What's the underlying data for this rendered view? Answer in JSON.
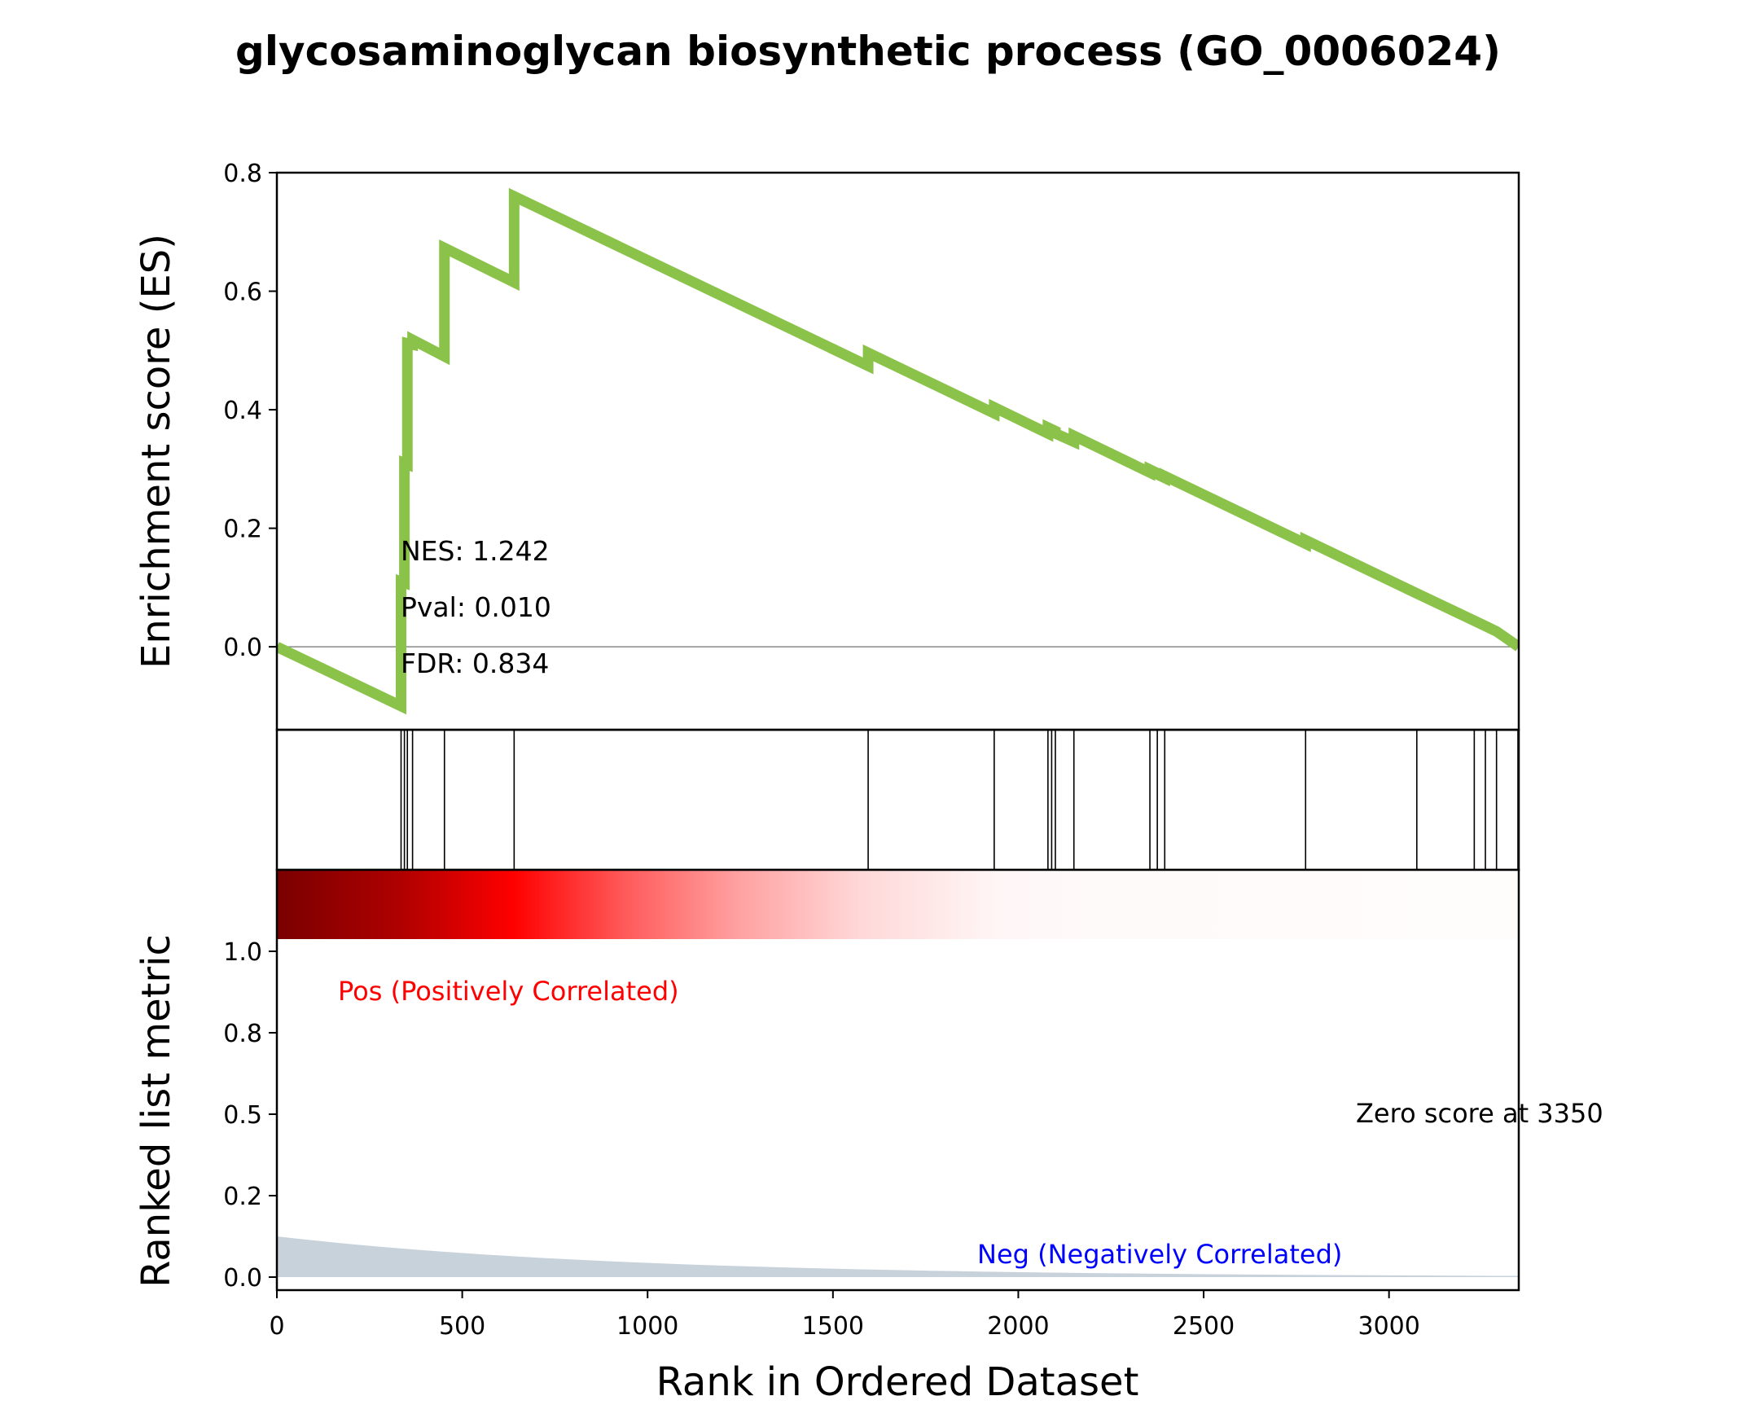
{
  "chart_data": {
    "type": "line",
    "title": "glycosaminoglycan biosynthetic process (GO_0006024)",
    "xlabel": "Rank in Ordered Dataset",
    "xlim": [
      0,
      3350
    ],
    "x_ticks": [
      "0",
      "500",
      "1000",
      "1500",
      "2000",
      "2500",
      "3000"
    ],
    "x_tick_values": [
      0,
      500,
      1000,
      1500,
      2000,
      2500,
      3000
    ],
    "es_panel": {
      "ylabel": "Enrichment score (ES)",
      "ylim": [
        -0.14,
        0.8
      ],
      "y_ticks": [
        "0.0",
        "0.2",
        "0.4",
        "0.6",
        "0.8"
      ],
      "y_tick_values": [
        0,
        0.2,
        0.4,
        0.6,
        0.8
      ],
      "line_color": "#8bc34a",
      "series": [
        {
          "x": [
            0,
            335,
            335,
            344,
            344,
            352,
            352,
            366,
            366,
            452,
            452,
            640,
            640,
            1595,
            1595,
            1935,
            1935,
            2080,
            2080,
            2100,
            2100,
            2150,
            2150,
            2355,
            2355,
            2375,
            2375,
            2395,
            2395,
            2775,
            2775,
            3075,
            3075,
            3230,
            3230,
            3260,
            3260,
            3290,
            3290,
            3350
          ],
          "y": [
            0,
            -0.1,
            0.11,
            0.108,
            0.31,
            0.308,
            0.512,
            0.51,
            0.518,
            0.49,
            0.673,
            0.615,
            0.76,
            0.474,
            0.496,
            0.394,
            0.404,
            0.36,
            0.37,
            0.364,
            0.36,
            0.346,
            0.356,
            0.294,
            0.299,
            0.293,
            0.291,
            0.285,
            0.288,
            0.174,
            0.18,
            0.09,
            0.09,
            0.044,
            0.044,
            0.035,
            0.035,
            0.026,
            0.026,
            0
          ]
        }
      ],
      "stats": {
        "nes": "NES: 1.242",
        "pval": "Pval: 0.010",
        "fdr": "FDR: 0.834"
      }
    },
    "hits": [
      335,
      344,
      352,
      366,
      452,
      640,
      1595,
      1935,
      2080,
      2090,
      2100,
      2150,
      2355,
      2375,
      2395,
      2775,
      3075,
      3230,
      3260,
      3290,
      3350
    ],
    "rank_panel": {
      "ylabel": "Ranked list metric",
      "ylim": [
        -0.04,
        1.25
      ],
      "y_ticks": [
        "0.0",
        "0.2",
        "0.5",
        "0.8",
        "1.0"
      ],
      "y_tick_values": [
        0.0,
        0.25,
        0.5,
        0.75,
        1.0
      ],
      "metric_fill_color": "#c8d2db",
      "metric_start": 0.125,
      "pos_label": "Pos (Positively Correlated)",
      "pos_color": "#ff0000",
      "neg_label": "Neg (Negatively Correlated)",
      "neg_color": "#0000ff",
      "zero_label": "Zero score at 3350"
    }
  }
}
